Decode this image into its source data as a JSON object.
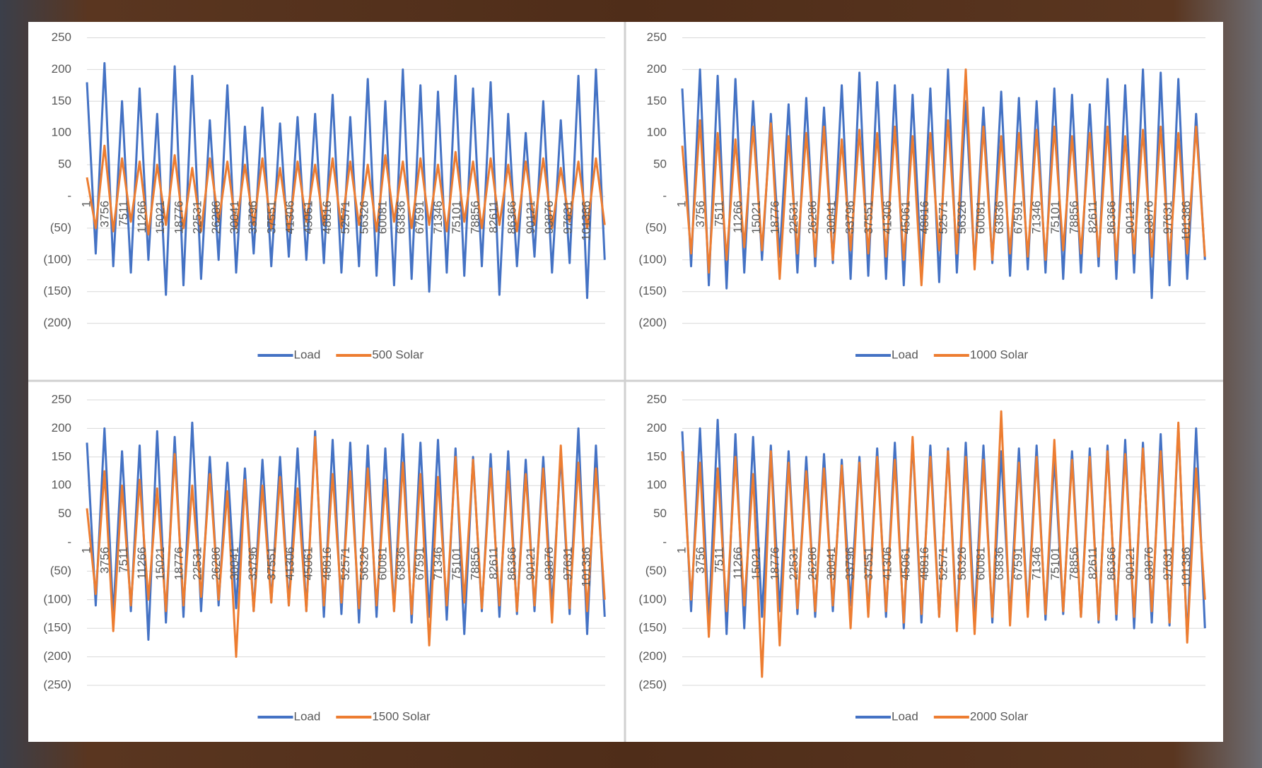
{
  "chart_data": [
    {
      "type": "line",
      "x": [
        1,
        1781,
        3561,
        5341,
        7121,
        8901,
        10681,
        12461,
        14241,
        16021,
        17801,
        19581,
        21361,
        23141,
        24921,
        26701,
        28481,
        30261,
        32041,
        33821,
        35601,
        37381,
        39161,
        40941,
        42721,
        44501,
        46281,
        48061,
        49841,
        51621,
        53401,
        55181,
        56961,
        58741,
        60521,
        62301,
        64081,
        65861,
        67641,
        69421,
        71201,
        72981,
        74761,
        76541,
        78321,
        80101,
        81881,
        83661,
        85441,
        87221,
        89001,
        90781,
        92561,
        94341,
        96121,
        97901,
        99681,
        101461,
        103241,
        105021
      ],
      "xlim": [
        1,
        105120
      ],
      "xticks": [
        1,
        3756,
        7511,
        11266,
        15021,
        18776,
        22531,
        26286,
        30041,
        33796,
        37551,
        41306,
        45061,
        48816,
        52571,
        56326,
        60081,
        63836,
        67591,
        71346,
        75101,
        78856,
        82611,
        86366,
        90121,
        93876,
        97631,
        101386
      ],
      "ylim": [
        -200,
        250
      ],
      "yticks": [
        250,
        200,
        150,
        100,
        50,
        {
          "value": 0,
          "label": "-"
        },
        {
          "value": -50,
          "label": "(50)"
        },
        {
          "value": -100,
          "label": "(100)"
        },
        {
          "value": -150,
          "label": "(150)"
        },
        {
          "value": -200,
          "label": "(200)"
        }
      ],
      "grid": true,
      "legend": "bottom",
      "series": [
        {
          "name": "Load",
          "color": "#4472c4",
          "values": [
            180,
            -90,
            210,
            -110,
            150,
            -120,
            170,
            -100,
            130,
            -155,
            205,
            -140,
            190,
            -130,
            120,
            -100,
            175,
            -120,
            110,
            -90,
            140,
            -110,
            115,
            -95,
            125,
            -100,
            130,
            -105,
            160,
            -120,
            125,
            -110,
            185,
            -125,
            150,
            -140,
            200,
            -130,
            175,
            -150,
            165,
            -120,
            190,
            -125,
            170,
            -110,
            180,
            -155,
            130,
            -110,
            100,
            -95,
            150,
            -120,
            120,
            -105,
            190,
            -160,
            200,
            -100
          ]
        },
        {
          "name": "500 Solar",
          "color": "#ed7d31",
          "values": [
            30,
            -50,
            80,
            -55,
            60,
            -40,
            55,
            -60,
            50,
            -45,
            65,
            -50,
            45,
            -55,
            60,
            -40,
            55,
            -50,
            50,
            -45,
            60,
            -50,
            45,
            -55,
            55,
            -40,
            50,
            -45,
            60,
            -50,
            55,
            -45,
            50,
            -55,
            65,
            -40,
            55,
            -50,
            60,
            -45,
            50,
            -55,
            70,
            -40,
            55,
            -50,
            60,
            -45,
            50,
            -55,
            55,
            -45,
            60,
            -50,
            45,
            -40,
            55,
            -50,
            60,
            -45
          ]
        }
      ]
    },
    {
      "type": "line",
      "x": [
        1,
        1781,
        3561,
        5341,
        7121,
        8901,
        10681,
        12461,
        14241,
        16021,
        17801,
        19581,
        21361,
        23141,
        24921,
        26701,
        28481,
        30261,
        32041,
        33821,
        35601,
        37381,
        39161,
        40941,
        42721,
        44501,
        46281,
        48061,
        49841,
        51621,
        53401,
        55181,
        56961,
        58741,
        60521,
        62301,
        64081,
        65861,
        67641,
        69421,
        71201,
        72981,
        74761,
        76541,
        78321,
        80101,
        81881,
        83661,
        85441,
        87221,
        89001,
        90781,
        92561,
        94341,
        96121,
        97901,
        99681,
        101461,
        103241,
        105021
      ],
      "xlim": [
        1,
        105120
      ],
      "xticks": [
        1,
        3756,
        7511,
        11266,
        15021,
        18776,
        22531,
        26286,
        30041,
        33796,
        37551,
        41306,
        45061,
        48816,
        52571,
        56326,
        60081,
        63836,
        67591,
        71346,
        75101,
        78856,
        82611,
        86366,
        90121,
        93876,
        97631,
        101386
      ],
      "ylim": [
        -200,
        250
      ],
      "yticks": [
        250,
        200,
        150,
        100,
        50,
        {
          "value": 0,
          "label": "-"
        },
        {
          "value": -50,
          "label": "(50)"
        },
        {
          "value": -100,
          "label": "(100)"
        },
        {
          "value": -150,
          "label": "(150)"
        },
        {
          "value": -200,
          "label": "(200)"
        }
      ],
      "grid": true,
      "legend": "bottom",
      "series": [
        {
          "name": "Load",
          "color": "#4472c4",
          "values": [
            170,
            -110,
            200,
            -140,
            190,
            -145,
            185,
            -120,
            150,
            -100,
            130,
            -95,
            145,
            -120,
            155,
            -110,
            140,
            -105,
            175,
            -130,
            195,
            -125,
            180,
            -130,
            175,
            -140,
            160,
            -120,
            170,
            -135,
            200,
            -120,
            150,
            -110,
            140,
            -105,
            165,
            -125,
            155,
            -115,
            150,
            -120,
            170,
            -130,
            160,
            -120,
            145,
            -110,
            185,
            -130,
            175,
            -120,
            200,
            -160,
            195,
            -140,
            185,
            -130,
            130,
            -100
          ]
        },
        {
          "name": "1000 Solar",
          "color": "#ed7d31",
          "values": [
            80,
            -90,
            120,
            -120,
            100,
            -100,
            90,
            -80,
            110,
            -85,
            115,
            -130,
            95,
            -90,
            100,
            -95,
            110,
            -100,
            90,
            -85,
            105,
            -90,
            100,
            -95,
            110,
            -100,
            95,
            -140,
            100,
            -85,
            120,
            -90,
            200,
            -115,
            110,
            -100,
            95,
            -90,
            100,
            -95,
            105,
            -100,
            110,
            -85,
            95,
            -90,
            100,
            -95,
            110,
            -100,
            95,
            -90,
            105,
            -95,
            110,
            -100,
            100,
            -90,
            110,
            -95
          ]
        }
      ]
    },
    {
      "type": "line",
      "x": [
        1,
        1781,
        3561,
        5341,
        7121,
        8901,
        10681,
        12461,
        14241,
        16021,
        17801,
        19581,
        21361,
        23141,
        24921,
        26701,
        28481,
        30261,
        32041,
        33821,
        35601,
        37381,
        39161,
        40941,
        42721,
        44501,
        46281,
        48061,
        49841,
        51621,
        53401,
        55181,
        56961,
        58741,
        60521,
        62301,
        64081,
        65861,
        67641,
        69421,
        71201,
        72981,
        74761,
        76541,
        78321,
        80101,
        81881,
        83661,
        85441,
        87221,
        89001,
        90781,
        92561,
        94341,
        96121,
        97901,
        99681,
        101461,
        103241,
        105021
      ],
      "xlim": [
        1,
        105120
      ],
      "xticks": [
        1,
        3756,
        7511,
        11266,
        15021,
        18776,
        22531,
        26286,
        30041,
        33796,
        37551,
        41306,
        45061,
        48816,
        52571,
        56326,
        60081,
        63836,
        67591,
        71346,
        75101,
        78856,
        82611,
        86366,
        90121,
        93876,
        97631,
        101386
      ],
      "ylim": [
        -250,
        250
      ],
      "yticks": [
        250,
        200,
        150,
        100,
        50,
        {
          "value": 0,
          "label": "-"
        },
        {
          "value": -50,
          "label": "(50)"
        },
        {
          "value": -100,
          "label": "(100)"
        },
        {
          "value": -150,
          "label": "(150)"
        },
        {
          "value": -200,
          "label": "(200)"
        },
        {
          "value": -250,
          "label": "(250)"
        }
      ],
      "grid": true,
      "legend": "bottom",
      "series": [
        {
          "name": "Load",
          "color": "#4472c4",
          "values": [
            175,
            -110,
            200,
            -130,
            160,
            -120,
            170,
            -170,
            195,
            -140,
            185,
            -130,
            210,
            -120,
            150,
            -110,
            140,
            -115,
            130,
            -120,
            145,
            -105,
            150,
            -110,
            165,
            -120,
            195,
            -130,
            180,
            -125,
            175,
            -140,
            170,
            -130,
            165,
            -120,
            190,
            -140,
            175,
            -130,
            180,
            -135,
            165,
            -160,
            150,
            -120,
            155,
            -130,
            160,
            -125,
            145,
            -120,
            150,
            -115,
            155,
            -125,
            200,
            -160,
            170,
            -130
          ]
        },
        {
          "name": "1500 Solar",
          "color": "#ed7d31",
          "values": [
            60,
            -90,
            125,
            -155,
            100,
            -110,
            110,
            -100,
            95,
            -120,
            155,
            -110,
            100,
            -95,
            120,
            -100,
            90,
            -200,
            110,
            -120,
            100,
            -105,
            115,
            -110,
            95,
            -120,
            185,
            -110,
            120,
            -105,
            125,
            -115,
            130,
            -110,
            110,
            -120,
            140,
            -125,
            120,
            -180,
            115,
            -110,
            150,
            -105,
            145,
            -115,
            130,
            -110,
            125,
            -120,
            120,
            -110,
            130,
            -140,
            170,
            -115,
            140,
            -120,
            130,
            -100
          ]
        }
      ]
    },
    {
      "type": "line",
      "x": [
        1,
        1781,
        3561,
        5341,
        7121,
        8901,
        10681,
        12461,
        14241,
        16021,
        17801,
        19581,
        21361,
        23141,
        24921,
        26701,
        28481,
        30261,
        32041,
        33821,
        35601,
        37381,
        39161,
        40941,
        42721,
        44501,
        46281,
        48061,
        49841,
        51621,
        53401,
        55181,
        56961,
        58741,
        60521,
        62301,
        64081,
        65861,
        67641,
        69421,
        71201,
        72981,
        74761,
        76541,
        78321,
        80101,
        81881,
        83661,
        85441,
        87221,
        89001,
        90781,
        92561,
        94341,
        96121,
        97901,
        99681,
        101461,
        103241,
        105021
      ],
      "xlim": [
        1,
        105120
      ],
      "xticks": [
        1,
        3756,
        7511,
        11266,
        15021,
        18776,
        22531,
        26286,
        30041,
        33796,
        37551,
        41306,
        45061,
        48816,
        52571,
        56326,
        60081,
        63836,
        67591,
        71346,
        75101,
        78856,
        82611,
        86366,
        90121,
        93876,
        97631,
        101386
      ],
      "ylim": [
        -250,
        250
      ],
      "yticks": [
        250,
        200,
        150,
        100,
        50,
        {
          "value": 0,
          "label": "-"
        },
        {
          "value": -50,
          "label": "(50)"
        },
        {
          "value": -100,
          "label": "(100)"
        },
        {
          "value": -150,
          "label": "(150)"
        },
        {
          "value": -200,
          "label": "(200)"
        },
        {
          "value": -250,
          "label": "(250)"
        }
      ],
      "grid": true,
      "legend": "bottom",
      "series": [
        {
          "name": "Load",
          "color": "#4472c4",
          "values": [
            195,
            -120,
            200,
            -140,
            215,
            -160,
            190,
            -150,
            185,
            -130,
            170,
            -120,
            160,
            -125,
            150,
            -130,
            155,
            -120,
            145,
            -110,
            150,
            -125,
            165,
            -130,
            175,
            -150,
            180,
            -140,
            170,
            -130,
            165,
            -145,
            175,
            -135,
            170,
            -140,
            160,
            -130,
            165,
            -125,
            170,
            -135,
            150,
            -125,
            160,
            -130,
            165,
            -140,
            170,
            -135,
            180,
            -150,
            175,
            -140,
            190,
            -145,
            205,
            -170,
            200,
            -150
          ]
        },
        {
          "name": "2000 Solar",
          "color": "#ed7d31",
          "values": [
            160,
            -100,
            140,
            -165,
            130,
            -120,
            150,
            -110,
            120,
            -235,
            160,
            -180,
            140,
            -115,
            125,
            -120,
            130,
            -110,
            135,
            -150,
            140,
            -130,
            150,
            -120,
            145,
            -140,
            185,
            -125,
            150,
            -130,
            160,
            -155,
            150,
            -160,
            145,
            -130,
            230,
            -145,
            140,
            -130,
            150,
            -125,
            180,
            -120,
            145,
            -130,
            150,
            -135,
            160,
            -125,
            155,
            -130,
            165,
            -120,
            160,
            -140,
            210,
            -175,
            130,
            -100
          ]
        }
      ]
    }
  ]
}
